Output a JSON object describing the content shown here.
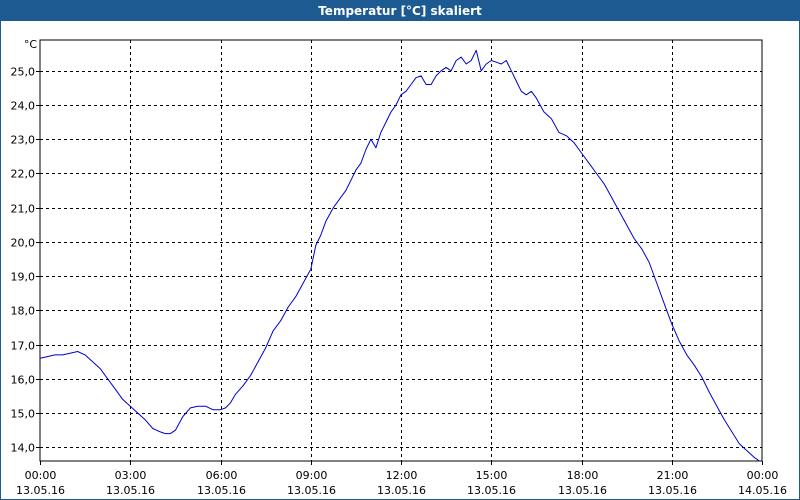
{
  "window": {
    "title": "Temperatur [°C] skaliert"
  },
  "colors": {
    "titlebar": "#1d5a91",
    "line": "#0000cc",
    "grid": "#000000"
  },
  "chart_data": {
    "type": "line",
    "title": "Temperatur [°C] skaliert",
    "ylabel": "°C",
    "xlabel": "",
    "ylim": [
      13.6,
      25.9
    ],
    "xlim": [
      "13.05.16 00:00",
      "14.05.16 00:00"
    ],
    "grid": true,
    "y_ticks": [
      "14,0",
      "15,0",
      "16,0",
      "17,0",
      "18,0",
      "19,0",
      "20,0",
      "21,0",
      "22,0",
      "23,0",
      "24,0",
      "25,0"
    ],
    "x_ticks": [
      {
        "time": "00:00",
        "date": "13.05.16"
      },
      {
        "time": "03:00",
        "date": "13.05.16"
      },
      {
        "time": "06:00",
        "date": "13.05.16"
      },
      {
        "time": "09:00",
        "date": "13.05.16"
      },
      {
        "time": "12:00",
        "date": "13.05.16"
      },
      {
        "time": "15:00",
        "date": "13.05.16"
      },
      {
        "time": "18:00",
        "date": "13.05.16"
      },
      {
        "time": "21:00",
        "date": "13.05.16"
      },
      {
        "time": "00:00",
        "date": "14.05.16"
      }
    ],
    "series": [
      {
        "x": [
          "00:00",
          "00:15",
          "00:30",
          "00:45",
          "01:00",
          "01:15",
          "01:30",
          "01:45",
          "02:00",
          "02:15",
          "02:30",
          "02:45",
          "03:00",
          "03:15",
          "03:30",
          "03:45",
          "04:00",
          "04:10",
          "04:20",
          "04:30",
          "04:45",
          "05:00",
          "05:15",
          "05:30",
          "05:45",
          "06:00",
          "06:10",
          "06:20",
          "06:30",
          "06:45",
          "07:00",
          "07:15",
          "07:30",
          "07:45",
          "08:00",
          "08:15",
          "08:30",
          "08:45",
          "09:00",
          "09:10",
          "09:20",
          "09:30",
          "09:45",
          "10:00",
          "10:10",
          "10:20",
          "10:30",
          "10:40",
          "10:50",
          "11:00",
          "11:10",
          "11:20",
          "11:30",
          "11:40",
          "11:50",
          "12:00",
          "12:10",
          "12:20",
          "12:30",
          "12:40",
          "12:50",
          "13:00",
          "13:10",
          "13:20",
          "13:30",
          "13:40",
          "13:50",
          "14:00",
          "14:10",
          "14:20",
          "14:30",
          "14:40",
          "14:50",
          "15:00",
          "15:10",
          "15:20",
          "15:30",
          "15:40",
          "15:50",
          "16:00",
          "16:10",
          "16:20",
          "16:30",
          "16:45",
          "17:00",
          "17:15",
          "17:30",
          "17:45",
          "18:00",
          "18:15",
          "18:30",
          "18:45",
          "19:00",
          "19:15",
          "19:30",
          "19:45",
          "20:00",
          "20:15",
          "20:30",
          "20:45",
          "21:00",
          "21:15",
          "21:30",
          "21:45",
          "22:00",
          "22:15",
          "22:30",
          "22:45",
          "23:00",
          "23:15",
          "23:30",
          "23:45",
          "23:55"
        ],
        "y": [
          16.6,
          16.65,
          16.7,
          16.7,
          16.75,
          16.8,
          16.7,
          16.5,
          16.3,
          16.0,
          15.7,
          15.4,
          15.2,
          15.0,
          14.8,
          14.55,
          14.45,
          14.4,
          14.4,
          14.5,
          14.9,
          15.15,
          15.2,
          15.2,
          15.1,
          15.1,
          15.15,
          15.3,
          15.55,
          15.8,
          16.1,
          16.5,
          16.9,
          17.4,
          17.7,
          18.1,
          18.4,
          18.8,
          19.2,
          19.9,
          20.2,
          20.6,
          21.0,
          21.3,
          21.5,
          21.8,
          22.1,
          22.3,
          22.7,
          23.0,
          22.75,
          23.2,
          23.5,
          23.8,
          24.0,
          24.3,
          24.4,
          24.6,
          24.8,
          24.85,
          24.6,
          24.6,
          24.85,
          25.0,
          25.1,
          25.0,
          25.3,
          25.4,
          25.2,
          25.3,
          25.6,
          25.0,
          25.2,
          25.3,
          25.25,
          25.2,
          25.3,
          25.0,
          24.7,
          24.4,
          24.3,
          24.4,
          24.2,
          23.8,
          23.6,
          23.2,
          23.1,
          22.9,
          22.6,
          22.3,
          22.0,
          21.7,
          21.3,
          20.9,
          20.5,
          20.1,
          19.8,
          19.4,
          18.8,
          18.2,
          17.6,
          17.1,
          16.7,
          16.4,
          16.05,
          15.6,
          15.2,
          14.8,
          14.45,
          14.1,
          13.9,
          13.7,
          13.6
        ]
      }
    ]
  }
}
